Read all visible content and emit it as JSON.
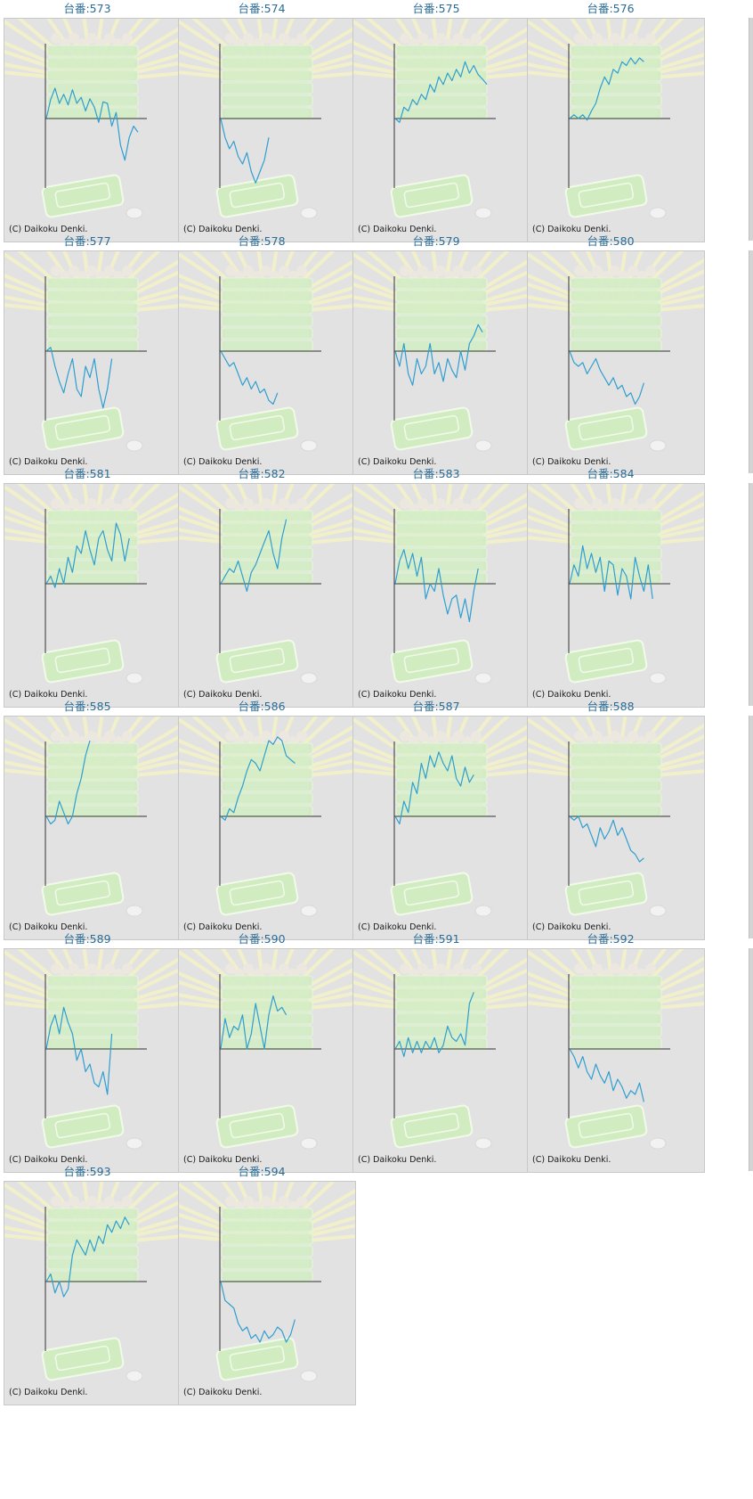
{
  "copyright": "(C) Daikoku Denki.",
  "line_color": "#2e9ed0",
  "axis_color": "#333333",
  "background_color": "#e2e2e2",
  "label_color": "#2b6c95",
  "chart_data": [
    {
      "type": "line",
      "title": "台番:573",
      "y": [
        0,
        25,
        40,
        20,
        32,
        18,
        38,
        20,
        28,
        10,
        26,
        15,
        -5,
        22,
        20,
        -10,
        8,
        -35,
        -55,
        -25,
        -10,
        -18
      ]
    },
    {
      "type": "line",
      "title": "台番:574",
      "y": [
        0,
        -25,
        -40,
        -30,
        -50,
        -60,
        -45,
        -70,
        -85,
        -70,
        -55,
        -25
      ]
    },
    {
      "type": "line",
      "title": "台番:575",
      "y": [
        0,
        -5,
        15,
        10,
        25,
        18,
        32,
        25,
        45,
        35,
        55,
        45,
        60,
        50,
        65,
        55,
        75,
        60,
        70,
        58,
        52,
        45
      ]
    },
    {
      "type": "line",
      "title": "台番:576",
      "y": [
        0,
        5,
        0,
        5,
        -2,
        10,
        20,
        40,
        55,
        45,
        65,
        60,
        75,
        70,
        80,
        72,
        80,
        75
      ]
    },
    {
      "type": "line",
      "title": "台番:577",
      "y": [
        0,
        5,
        -20,
        -40,
        -55,
        -30,
        -10,
        -50,
        -60,
        -20,
        -35,
        -10,
        -50,
        -75,
        -50,
        -10
      ]
    },
    {
      "type": "line",
      "title": "台番:578",
      "y": [
        0,
        -10,
        -20,
        -15,
        -30,
        -45,
        -35,
        -50,
        -40,
        -55,
        -50,
        -65,
        -70,
        -55
      ]
    },
    {
      "type": "line",
      "title": "台番:579",
      "y": [
        0,
        -20,
        10,
        -30,
        -45,
        -10,
        -30,
        -20,
        10,
        -30,
        -15,
        -40,
        -10,
        -25,
        -35,
        0,
        -25,
        10,
        20,
        35,
        25
      ]
    },
    {
      "type": "line",
      "title": "台番:580",
      "y": [
        0,
        -15,
        -20,
        -15,
        -30,
        -20,
        -10,
        -25,
        -35,
        -45,
        -35,
        -50,
        -45,
        -60,
        -55,
        -70,
        -60,
        -42
      ]
    },
    {
      "type": "line",
      "title": "台番:581",
      "y": [
        0,
        10,
        -5,
        20,
        0,
        35,
        15,
        50,
        40,
        70,
        45,
        25,
        60,
        70,
        45,
        30,
        80,
        65,
        30,
        60
      ]
    },
    {
      "type": "line",
      "title": "台番:582",
      "y": [
        0,
        10,
        20,
        15,
        30,
        10,
        -10,
        15,
        25,
        40,
        55,
        70,
        40,
        20,
        60,
        85
      ]
    },
    {
      "type": "line",
      "title": "台番:583",
      "y": [
        0,
        30,
        45,
        20,
        40,
        10,
        35,
        -20,
        0,
        -10,
        20,
        -15,
        -40,
        -20,
        -15,
        -45,
        -20,
        -50,
        -10,
        20
      ]
    },
    {
      "type": "line",
      "title": "台番:584",
      "y": [
        0,
        25,
        10,
        50,
        20,
        40,
        15,
        35,
        -10,
        30,
        25,
        -15,
        20,
        10,
        -20,
        35,
        10,
        -10,
        25,
        -20
      ]
    },
    {
      "type": "line",
      "title": "台番:585",
      "y": [
        0,
        -10,
        -5,
        20,
        5,
        -10,
        0,
        30,
        50,
        80,
        100
      ]
    },
    {
      "type": "line",
      "title": "台番:586",
      "y": [
        0,
        -5,
        10,
        5,
        25,
        40,
        60,
        75,
        70,
        60,
        80,
        100,
        95,
        105,
        100,
        80,
        75,
        70
      ]
    },
    {
      "type": "line",
      "title": "台番:587",
      "y": [
        0,
        -10,
        20,
        5,
        45,
        30,
        70,
        50,
        80,
        65,
        85,
        70,
        60,
        80,
        50,
        40,
        65,
        45,
        55
      ]
    },
    {
      "type": "line",
      "title": "台番:588",
      "y": [
        0,
        -5,
        0,
        -15,
        -10,
        -25,
        -40,
        -15,
        -30,
        -20,
        -5,
        -25,
        -15,
        -30,
        -45,
        -50,
        -60,
        -55
      ]
    },
    {
      "type": "line",
      "title": "台番:589",
      "y": [
        0,
        30,
        45,
        20,
        55,
        35,
        20,
        -15,
        0,
        -30,
        -20,
        -45,
        -50,
        -30,
        -60,
        20
      ]
    },
    {
      "type": "line",
      "title": "台番:590",
      "y": [
        0,
        40,
        15,
        30,
        25,
        45,
        0,
        20,
        60,
        30,
        0,
        45,
        70,
        50,
        55,
        45
      ]
    },
    {
      "type": "line",
      "title": "台番:591",
      "y": [
        0,
        10,
        -10,
        15,
        -5,
        10,
        -5,
        10,
        0,
        15,
        -5,
        5,
        30,
        15,
        10,
        20,
        5,
        60,
        75
      ]
    },
    {
      "type": "line",
      "title": "台番:592",
      "y": [
        0,
        -10,
        -25,
        -10,
        -30,
        -40,
        -20,
        -35,
        -45,
        -30,
        -55,
        -40,
        -50,
        -65,
        -55,
        -60,
        -45,
        -70
      ]
    },
    {
      "type": "line",
      "title": "台番:593",
      "y": [
        0,
        10,
        -15,
        0,
        -20,
        -10,
        35,
        55,
        45,
        35,
        55,
        40,
        60,
        50,
        75,
        65,
        80,
        70,
        85,
        75
      ]
    },
    {
      "type": "line",
      "title": "台番:594",
      "y": [
        0,
        -25,
        -30,
        -35,
        -55,
        -65,
        -60,
        -75,
        -70,
        -80,
        -65,
        -75,
        -70,
        -60,
        -65,
        -80,
        -70,
        -50
      ]
    }
  ]
}
